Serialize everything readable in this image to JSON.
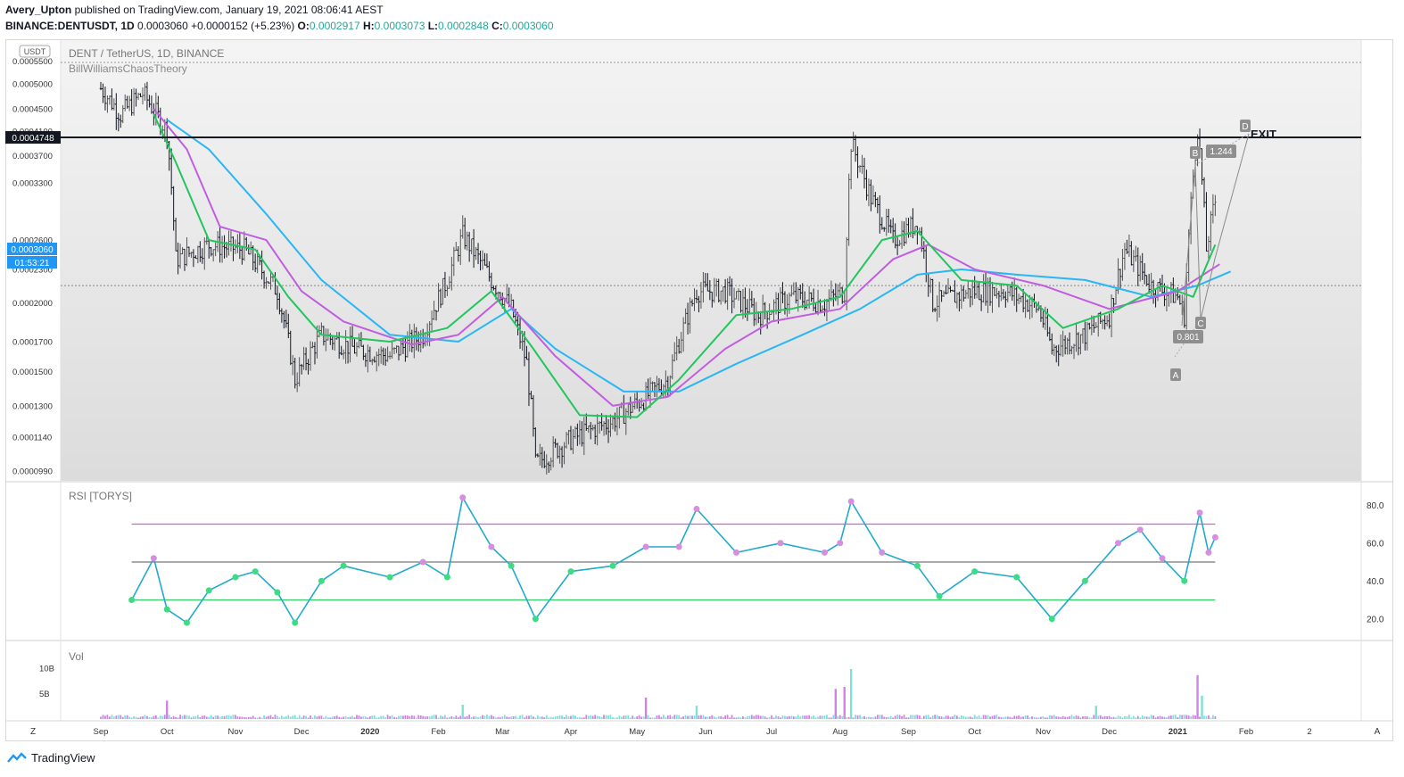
{
  "header": {
    "author": "Avery_Upton",
    "published": "published on TradingView.com, January 19, 2021 08:06:41 AEST",
    "symbol_line": "BINANCE:DENTUSDT, 1D",
    "last": "0.0003060",
    "change": "+0.0000152 (+5.23%)",
    "o_label": "O:",
    "o": "0.0002917",
    "h_label": "H:",
    "h": "0.0003073",
    "l_label": "L:",
    "l": "0.0002848",
    "c_label": "C:",
    "c": "0.0003060"
  },
  "pane_labels": {
    "currency": "USDT",
    "main": "DENT / TetherUS, 1D, BINANCE",
    "indicator": "BillWilliamsChaosTheory",
    "rsi": "RSI [TORYS]",
    "vol": "Vol",
    "z_button": "Z",
    "a_button": "A"
  },
  "price_badges": {
    "resistance": "0.0004748",
    "last": "0.0003060",
    "countdown": "01:53:21"
  },
  "annotations": {
    "A": "A",
    "B": "B",
    "C": "C",
    "D": "D",
    "ratio_bc": "0.801",
    "ratio_cd": "1.244",
    "exit": "EXIT"
  },
  "footer": {
    "brand": "TradingView"
  },
  "colors": {
    "up": "#26a69a",
    "down": "#131722",
    "green_line": "#22c55e",
    "pink_line": "#c15de0",
    "blue_line": "#29b6f6",
    "rsi_line": "#22aacc",
    "rsi_upper": "#dd55dd",
    "rsi_lower": "#33cc66",
    "vol_up": "#7fe0d8",
    "vol_down": "#cf84e3"
  },
  "chart_data": {
    "type": "candlestick",
    "price_ticks": [
      "0.0005500",
      "0.0005000",
      "0.0004500",
      "0.0004100",
      "0.0003700",
      "0.0003300",
      "0.0002600",
      "0.0002300",
      "0.0002000",
      "0.0001700",
      "0.0001500",
      "0.0001300",
      "0.0001140",
      "0.0000990"
    ],
    "price_range": [
      9.5e-05,
      0.0006
    ],
    "resistance": 0.0004748,
    "dotted_level": 0.000215,
    "time_labels": [
      "Sep",
      "Oct",
      "Nov",
      "Dec",
      "2020",
      "Feb",
      "Mar",
      "Apr",
      "May",
      "Jun",
      "Jul",
      "Aug",
      "Sep",
      "Oct",
      "Nov",
      "Dec",
      "2021",
      "Feb",
      "2"
    ],
    "price_series": [
      [
        "2019-09-01",
        0.00049
      ],
      [
        "2019-09-10",
        0.00044
      ],
      [
        "2019-09-20",
        0.00048
      ],
      [
        "2019-10-01",
        0.00041
      ],
      [
        "2019-10-05",
        0.00024
      ],
      [
        "2019-10-20",
        0.000255
      ],
      [
        "2019-11-05",
        0.00025
      ],
      [
        "2019-11-20",
        0.00021
      ],
      [
        "2019-11-28",
        0.000145
      ],
      [
        "2019-12-10",
        0.000175
      ],
      [
        "2019-12-25",
        0.000165
      ],
      [
        "2020-01-10",
        0.00016
      ],
      [
        "2020-01-25",
        0.000175
      ],
      [
        "2020-02-05",
        0.00022
      ],
      [
        "2020-02-12",
        0.000265
      ],
      [
        "2020-02-25",
        0.00022
      ],
      [
        "2020-03-05",
        0.000195
      ],
      [
        "2020-03-12",
        0.000155
      ],
      [
        "2020-03-16",
        0.000102
      ],
      [
        "2020-04-01",
        0.000113
      ],
      [
        "2020-04-20",
        0.000122
      ],
      [
        "2020-05-05",
        0.000135
      ],
      [
        "2020-05-15",
        0.000145
      ],
      [
        "2020-05-28",
        0.00021
      ],
      [
        "2020-06-10",
        0.00021
      ],
      [
        "2020-06-25",
        0.00019
      ],
      [
        "2020-07-10",
        0.000205
      ],
      [
        "2020-07-25",
        0.0002
      ],
      [
        "2020-08-03",
        0.00021
      ],
      [
        "2020-08-06",
        0.00039
      ],
      [
        "2020-08-15",
        0.00031
      ],
      [
        "2020-08-25",
        0.00026
      ],
      [
        "2020-09-05",
        0.00028
      ],
      [
        "2020-09-12",
        0.0002
      ],
      [
        "2020-09-30",
        0.00021
      ],
      [
        "2020-10-15",
        0.00021
      ],
      [
        "2020-10-30",
        0.000195
      ],
      [
        "2020-11-05",
        0.000165
      ],
      [
        "2020-11-20",
        0.000175
      ],
      [
        "2020-12-01",
        0.00019
      ],
      [
        "2020-12-08",
        0.00025
      ],
      [
        "2020-12-20",
        0.000215
      ],
      [
        "2021-01-01",
        0.000205
      ],
      [
        "2021-01-04",
        0.00019
      ],
      [
        "2021-01-10",
        0.000415
      ],
      [
        "2021-01-14",
        0.00025
      ],
      [
        "2021-01-18",
        0.000306
      ]
    ],
    "green_ma": [
      [
        "2019-09-25",
        0.00044
      ],
      [
        "2019-10-05",
        0.00036
      ],
      [
        "2019-10-20",
        0.00026
      ],
      [
        "2019-11-10",
        0.00025
      ],
      [
        "2019-11-25",
        0.000205
      ],
      [
        "2019-12-10",
        0.000175
      ],
      [
        "2020-01-10",
        0.00017
      ],
      [
        "2020-02-05",
        0.00018
      ],
      [
        "2020-02-25",
        0.00021
      ],
      [
        "2020-03-15",
        0.000165
      ],
      [
        "2020-04-05",
        0.000125
      ],
      [
        "2020-05-01",
        0.000124
      ],
      [
        "2020-05-20",
        0.000145
      ],
      [
        "2020-06-15",
        0.00019
      ],
      [
        "2020-07-10",
        0.000195
      ],
      [
        "2020-08-01",
        0.000205
      ],
      [
        "2020-08-20",
        0.00026
      ],
      [
        "2020-09-05",
        0.00027
      ],
      [
        "2020-09-25",
        0.00022
      ],
      [
        "2020-10-20",
        0.000215
      ],
      [
        "2020-11-10",
        0.00018
      ],
      [
        "2020-12-05",
        0.000195
      ],
      [
        "2020-12-25",
        0.000215
      ],
      [
        "2021-01-08",
        0.000205
      ],
      [
        "2021-01-18",
        0.000255
      ]
    ],
    "pink_ma": [
      [
        "2019-09-25",
        0.00045
      ],
      [
        "2019-10-10",
        0.00038
      ],
      [
        "2019-10-25",
        0.000275
      ],
      [
        "2019-11-15",
        0.00026
      ],
      [
        "2019-12-01",
        0.00021
      ],
      [
        "2019-12-20",
        0.000185
      ],
      [
        "2020-01-20",
        0.000168
      ],
      [
        "2020-02-10",
        0.000175
      ],
      [
        "2020-03-01",
        0.000205
      ],
      [
        "2020-03-25",
        0.00016
      ],
      [
        "2020-04-20",
        0.00013
      ],
      [
        "2020-05-15",
        0.000135
      ],
      [
        "2020-06-10",
        0.000165
      ],
      [
        "2020-07-01",
        0.000185
      ],
      [
        "2020-08-01",
        0.000195
      ],
      [
        "2020-08-25",
        0.00024
      ],
      [
        "2020-09-10",
        0.000255
      ],
      [
        "2020-10-01",
        0.00023
      ],
      [
        "2020-11-01",
        0.000215
      ],
      [
        "2020-12-01",
        0.000195
      ],
      [
        "2021-01-01",
        0.00021
      ],
      [
        "2021-01-20",
        0.000235
      ]
    ],
    "blue_ma": [
      [
        "2019-10-01",
        0.00043
      ],
      [
        "2019-10-20",
        0.00038
      ],
      [
        "2019-11-15",
        0.00029
      ],
      [
        "2019-12-10",
        0.00022
      ],
      [
        "2020-01-10",
        0.000175
      ],
      [
        "2020-02-10",
        0.00017
      ],
      [
        "2020-03-05",
        0.000195
      ],
      [
        "2020-03-25",
        0.000165
      ],
      [
        "2020-04-25",
        0.000138
      ],
      [
        "2020-05-20",
        0.000138
      ],
      [
        "2020-06-15",
        0.000155
      ],
      [
        "2020-07-15",
        0.000175
      ],
      [
        "2020-08-10",
        0.000195
      ],
      [
        "2020-09-05",
        0.000225
      ],
      [
        "2020-09-25",
        0.00023
      ],
      [
        "2020-10-20",
        0.000225
      ],
      [
        "2020-11-20",
        0.00022
      ],
      [
        "2020-12-20",
        0.000205
      ],
      [
        "2021-01-10",
        0.000215
      ],
      [
        "2021-01-25",
        0.000228
      ]
    ],
    "rsi_ticks": [
      "80.0",
      "60.0",
      "40.0",
      "20.0"
    ],
    "rsi_range": [
      10,
      90
    ],
    "rsi_levels": [
      70,
      50,
      30
    ],
    "rsi": [
      [
        "2019-09-15",
        30
      ],
      [
        "2019-09-25",
        52
      ],
      [
        "2019-10-01",
        25
      ],
      [
        "2019-10-10",
        18
      ],
      [
        "2019-10-20",
        35
      ],
      [
        "2019-11-01",
        42
      ],
      [
        "2019-11-10",
        45
      ],
      [
        "2019-11-20",
        34
      ],
      [
        "2019-11-28",
        18
      ],
      [
        "2019-12-10",
        40
      ],
      [
        "2019-12-20",
        48
      ],
      [
        "2020-01-10",
        42
      ],
      [
        "2020-01-25",
        50
      ],
      [
        "2020-02-05",
        42
      ],
      [
        "2020-02-12",
        84
      ],
      [
        "2020-02-25",
        58
      ],
      [
        "2020-03-05",
        48
      ],
      [
        "2020-03-16",
        20
      ],
      [
        "2020-04-01",
        45
      ],
      [
        "2020-04-20",
        48
      ],
      [
        "2020-05-05",
        58
      ],
      [
        "2020-05-20",
        58
      ],
      [
        "2020-05-28",
        78
      ],
      [
        "2020-06-15",
        55
      ],
      [
        "2020-07-05",
        60
      ],
      [
        "2020-07-25",
        55
      ],
      [
        "2020-08-01",
        60
      ],
      [
        "2020-08-06",
        82
      ],
      [
        "2020-08-20",
        55
      ],
      [
        "2020-09-05",
        48
      ],
      [
        "2020-09-15",
        32
      ],
      [
        "2020-10-01",
        45
      ],
      [
        "2020-10-20",
        42
      ],
      [
        "2020-11-05",
        20
      ],
      [
        "2020-11-20",
        40
      ],
      [
        "2020-12-05",
        60
      ],
      [
        "2020-12-15",
        67
      ],
      [
        "2020-12-25",
        52
      ],
      [
        "2021-01-04",
        40
      ],
      [
        "2021-01-11",
        76
      ],
      [
        "2021-01-15",
        55
      ],
      [
        "2021-01-18",
        63
      ]
    ],
    "vol_ticks": [
      "10B",
      "5B"
    ],
    "vol_range_billions": [
      0,
      14
    ],
    "volume_spikes_billions": [
      [
        "2019-10-01",
        3.6
      ],
      [
        "2020-02-12",
        2.8
      ],
      [
        "2020-05-05",
        4.2
      ],
      [
        "2020-05-28",
        2.6
      ],
      [
        "2020-07-30",
        5.9
      ],
      [
        "2020-08-06",
        9.8
      ],
      [
        "2020-08-03",
        6.3
      ],
      [
        "2020-11-25",
        2.6
      ],
      [
        "2021-01-10",
        8.6
      ],
      [
        "2021-01-12",
        4.6
      ]
    ]
  }
}
